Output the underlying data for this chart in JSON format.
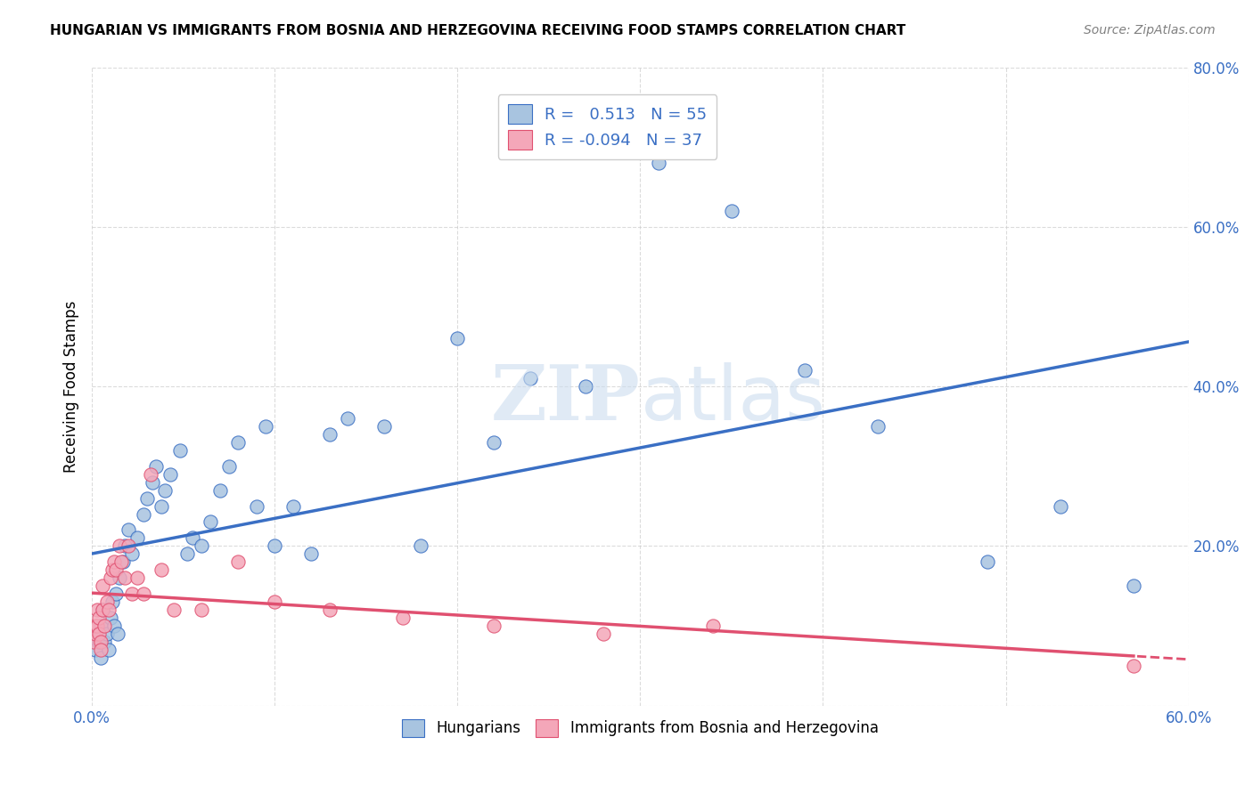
{
  "title": "HUNGARIAN VS IMMIGRANTS FROM BOSNIA AND HERZEGOVINA RECEIVING FOOD STAMPS CORRELATION CHART",
  "source": "Source: ZipAtlas.com",
  "ylabel": "Receiving Food Stamps",
  "xlabel": "",
  "xlim": [
    0.0,
    0.6
  ],
  "ylim": [
    0.0,
    0.8
  ],
  "legend_label1": "Hungarians",
  "legend_label2": "Immigrants from Bosnia and Herzegovina",
  "R1": 0.513,
  "N1": 55,
  "R2": -0.094,
  "N2": 37,
  "color_blue": "#a8c4e0",
  "color_pink": "#f4a7b9",
  "line_blue": "#3a6fc4",
  "line_pink": "#e05070",
  "blue_x": [
    0.002,
    0.003,
    0.004,
    0.005,
    0.005,
    0.006,
    0.007,
    0.008,
    0.009,
    0.01,
    0.011,
    0.012,
    0.013,
    0.014,
    0.015,
    0.017,
    0.018,
    0.02,
    0.022,
    0.025,
    0.028,
    0.03,
    0.033,
    0.035,
    0.038,
    0.04,
    0.043,
    0.048,
    0.052,
    0.055,
    0.06,
    0.065,
    0.07,
    0.075,
    0.08,
    0.09,
    0.095,
    0.1,
    0.11,
    0.12,
    0.13,
    0.14,
    0.16,
    0.18,
    0.2,
    0.22,
    0.24,
    0.27,
    0.31,
    0.35,
    0.39,
    0.43,
    0.49,
    0.53,
    0.57
  ],
  "blue_y": [
    0.07,
    0.09,
    0.08,
    0.1,
    0.06,
    0.12,
    0.08,
    0.09,
    0.07,
    0.11,
    0.13,
    0.1,
    0.14,
    0.09,
    0.16,
    0.18,
    0.2,
    0.22,
    0.19,
    0.21,
    0.24,
    0.26,
    0.28,
    0.3,
    0.25,
    0.27,
    0.29,
    0.32,
    0.19,
    0.21,
    0.2,
    0.23,
    0.27,
    0.3,
    0.33,
    0.25,
    0.35,
    0.2,
    0.25,
    0.19,
    0.34,
    0.36,
    0.35,
    0.2,
    0.46,
    0.33,
    0.41,
    0.4,
    0.68,
    0.62,
    0.42,
    0.35,
    0.18,
    0.25,
    0.15
  ],
  "pink_x": [
    0.001,
    0.002,
    0.002,
    0.003,
    0.003,
    0.004,
    0.004,
    0.005,
    0.005,
    0.006,
    0.006,
    0.007,
    0.008,
    0.009,
    0.01,
    0.011,
    0.012,
    0.013,
    0.015,
    0.016,
    0.018,
    0.02,
    0.022,
    0.025,
    0.028,
    0.032,
    0.038,
    0.045,
    0.06,
    0.08,
    0.1,
    0.13,
    0.17,
    0.22,
    0.28,
    0.34,
    0.57
  ],
  "pink_y": [
    0.08,
    0.09,
    0.1,
    0.1,
    0.12,
    0.09,
    0.11,
    0.08,
    0.07,
    0.12,
    0.15,
    0.1,
    0.13,
    0.12,
    0.16,
    0.17,
    0.18,
    0.17,
    0.2,
    0.18,
    0.16,
    0.2,
    0.14,
    0.16,
    0.14,
    0.29,
    0.17,
    0.12,
    0.12,
    0.18,
    0.13,
    0.12,
    0.11,
    0.1,
    0.09,
    0.1,
    0.05
  ]
}
